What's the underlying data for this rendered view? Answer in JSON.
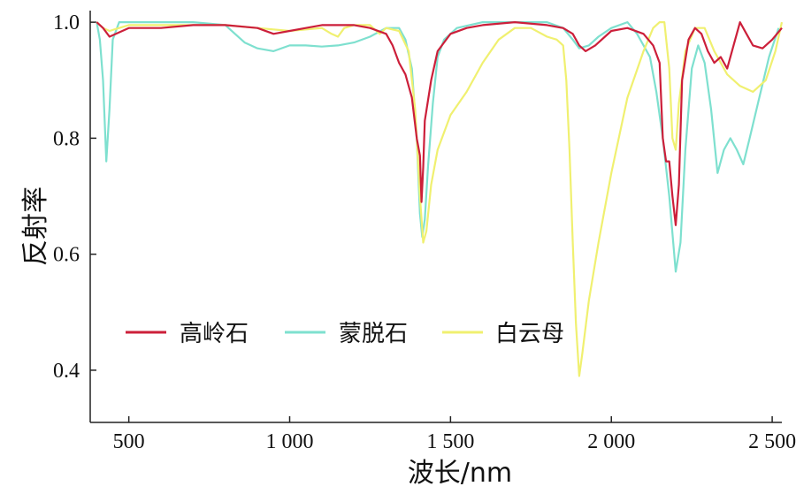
{
  "chart_data": {
    "type": "line",
    "xlabel": "波长/nm",
    "ylabel": "反射率",
    "xlim": [
      380,
      2530
    ],
    "ylim": [
      0.31,
      1.02
    ],
    "x_ticks": [
      500,
      1000,
      1500,
      2000,
      2500
    ],
    "x_tick_labels": [
      "500",
      "1 000",
      "1 500",
      "2 000",
      "2 500"
    ],
    "y_ticks": [
      0.4,
      0.6,
      0.8,
      1.0
    ],
    "y_tick_labels": [
      "0.4",
      "0.6",
      "0.8",
      "1.0"
    ],
    "legend_position": "lower-left",
    "series": [
      {
        "name": "高岭石",
        "color": "#cc1f3a",
        "points": [
          [
            400,
            1.0
          ],
          [
            420,
            0.99
          ],
          [
            440,
            0.975
          ],
          [
            460,
            0.98
          ],
          [
            500,
            0.99
          ],
          [
            600,
            0.99
          ],
          [
            700,
            0.995
          ],
          [
            800,
            0.995
          ],
          [
            900,
            0.99
          ],
          [
            950,
            0.98
          ],
          [
            1000,
            0.985
          ],
          [
            1050,
            0.99
          ],
          [
            1100,
            0.995
          ],
          [
            1200,
            0.995
          ],
          [
            1250,
            0.99
          ],
          [
            1300,
            0.98
          ],
          [
            1320,
            0.96
          ],
          [
            1340,
            0.93
          ],
          [
            1360,
            0.91
          ],
          [
            1380,
            0.87
          ],
          [
            1395,
            0.8
          ],
          [
            1405,
            0.77
          ],
          [
            1410,
            0.69
          ],
          [
            1415,
            0.75
          ],
          [
            1420,
            0.83
          ],
          [
            1440,
            0.9
          ],
          [
            1460,
            0.95
          ],
          [
            1500,
            0.98
          ],
          [
            1550,
            0.99
          ],
          [
            1600,
            0.995
          ],
          [
            1700,
            1.0
          ],
          [
            1800,
            0.995
          ],
          [
            1850,
            0.99
          ],
          [
            1880,
            0.98
          ],
          [
            1900,
            0.96
          ],
          [
            1920,
            0.95
          ],
          [
            1950,
            0.96
          ],
          [
            2000,
            0.985
          ],
          [
            2050,
            0.99
          ],
          [
            2100,
            0.98
          ],
          [
            2130,
            0.96
          ],
          [
            2150,
            0.93
          ],
          [
            2160,
            0.8
          ],
          [
            2170,
            0.76
          ],
          [
            2180,
            0.76
          ],
          [
            2190,
            0.7
          ],
          [
            2200,
            0.65
          ],
          [
            2210,
            0.72
          ],
          [
            2220,
            0.9
          ],
          [
            2240,
            0.97
          ],
          [
            2260,
            0.99
          ],
          [
            2280,
            0.98
          ],
          [
            2300,
            0.95
          ],
          [
            2320,
            0.93
          ],
          [
            2340,
            0.94
          ],
          [
            2360,
            0.92
          ],
          [
            2380,
            0.96
          ],
          [
            2400,
            1.0
          ],
          [
            2420,
            0.98
          ],
          [
            2440,
            0.96
          ],
          [
            2470,
            0.955
          ],
          [
            2500,
            0.97
          ],
          [
            2530,
            0.99
          ]
        ]
      },
      {
        "name": "蒙脱石",
        "color": "#7ee0cf",
        "points": [
          [
            400,
            1.0
          ],
          [
            410,
            0.97
          ],
          [
            420,
            0.9
          ],
          [
            430,
            0.76
          ],
          [
            440,
            0.85
          ],
          [
            450,
            0.97
          ],
          [
            470,
            1.0
          ],
          [
            600,
            1.0
          ],
          [
            700,
            1.0
          ],
          [
            800,
            0.995
          ],
          [
            830,
            0.98
          ],
          [
            860,
            0.965
          ],
          [
            900,
            0.955
          ],
          [
            950,
            0.95
          ],
          [
            1000,
            0.96
          ],
          [
            1050,
            0.96
          ],
          [
            1100,
            0.958
          ],
          [
            1150,
            0.96
          ],
          [
            1200,
            0.965
          ],
          [
            1250,
            0.975
          ],
          [
            1300,
            0.99
          ],
          [
            1340,
            0.99
          ],
          [
            1360,
            0.97
          ],
          [
            1380,
            0.92
          ],
          [
            1395,
            0.8
          ],
          [
            1405,
            0.67
          ],
          [
            1412,
            0.63
          ],
          [
            1420,
            0.66
          ],
          [
            1430,
            0.75
          ],
          [
            1445,
            0.86
          ],
          [
            1460,
            0.94
          ],
          [
            1480,
            0.97
          ],
          [
            1520,
            0.99
          ],
          [
            1600,
            1.0
          ],
          [
            1700,
            1.0
          ],
          [
            1800,
            1.0
          ],
          [
            1850,
            0.99
          ],
          [
            1880,
            0.97
          ],
          [
            1900,
            0.955
          ],
          [
            1930,
            0.96
          ],
          [
            1960,
            0.975
          ],
          [
            2000,
            0.99
          ],
          [
            2050,
            1.0
          ],
          [
            2080,
            0.98
          ],
          [
            2100,
            0.96
          ],
          [
            2120,
            0.94
          ],
          [
            2140,
            0.88
          ],
          [
            2160,
            0.8
          ],
          [
            2180,
            0.7
          ],
          [
            2200,
            0.57
          ],
          [
            2215,
            0.62
          ],
          [
            2230,
            0.78
          ],
          [
            2250,
            0.92
          ],
          [
            2270,
            0.96
          ],
          [
            2290,
            0.93
          ],
          [
            2310,
            0.85
          ],
          [
            2330,
            0.74
          ],
          [
            2350,
            0.78
          ],
          [
            2370,
            0.8
          ],
          [
            2390,
            0.78
          ],
          [
            2410,
            0.755
          ],
          [
            2430,
            0.8
          ],
          [
            2460,
            0.87
          ],
          [
            2490,
            0.94
          ],
          [
            2520,
            0.99
          ]
        ]
      },
      {
        "name": "白云母",
        "color": "#f0f070",
        "points": [
          [
            400,
            1.0
          ],
          [
            420,
            0.99
          ],
          [
            440,
            0.985
          ],
          [
            470,
            0.99
          ],
          [
            500,
            0.995
          ],
          [
            600,
            0.995
          ],
          [
            700,
            0.995
          ],
          [
            800,
            0.995
          ],
          [
            900,
            0.99
          ],
          [
            1000,
            0.985
          ],
          [
            1100,
            0.99
          ],
          [
            1130,
            0.98
          ],
          [
            1150,
            0.975
          ],
          [
            1170,
            0.99
          ],
          [
            1200,
            0.995
          ],
          [
            1250,
            0.995
          ],
          [
            1280,
            0.98
          ],
          [
            1300,
            0.99
          ],
          [
            1340,
            0.985
          ],
          [
            1370,
            0.95
          ],
          [
            1390,
            0.85
          ],
          [
            1405,
            0.7
          ],
          [
            1415,
            0.62
          ],
          [
            1425,
            0.64
          ],
          [
            1440,
            0.72
          ],
          [
            1460,
            0.78
          ],
          [
            1500,
            0.84
          ],
          [
            1550,
            0.88
          ],
          [
            1600,
            0.93
          ],
          [
            1650,
            0.97
          ],
          [
            1700,
            0.99
          ],
          [
            1750,
            0.99
          ],
          [
            1800,
            0.975
          ],
          [
            1830,
            0.97
          ],
          [
            1850,
            0.96
          ],
          [
            1860,
            0.9
          ],
          [
            1870,
            0.78
          ],
          [
            1880,
            0.62
          ],
          [
            1890,
            0.48
          ],
          [
            1900,
            0.39
          ],
          [
            1910,
            0.43
          ],
          [
            1930,
            0.52
          ],
          [
            1960,
            0.62
          ],
          [
            2000,
            0.74
          ],
          [
            2050,
            0.87
          ],
          [
            2100,
            0.95
          ],
          [
            2130,
            0.99
          ],
          [
            2150,
            1.0
          ],
          [
            2165,
            1.0
          ],
          [
            2180,
            0.92
          ],
          [
            2190,
            0.8
          ],
          [
            2200,
            0.78
          ],
          [
            2210,
            0.86
          ],
          [
            2230,
            0.95
          ],
          [
            2260,
            0.99
          ],
          [
            2290,
            0.99
          ],
          [
            2320,
            0.95
          ],
          [
            2360,
            0.91
          ],
          [
            2400,
            0.89
          ],
          [
            2440,
            0.88
          ],
          [
            2480,
            0.9
          ],
          [
            2510,
            0.95
          ],
          [
            2530,
            1.0
          ]
        ]
      }
    ]
  }
}
